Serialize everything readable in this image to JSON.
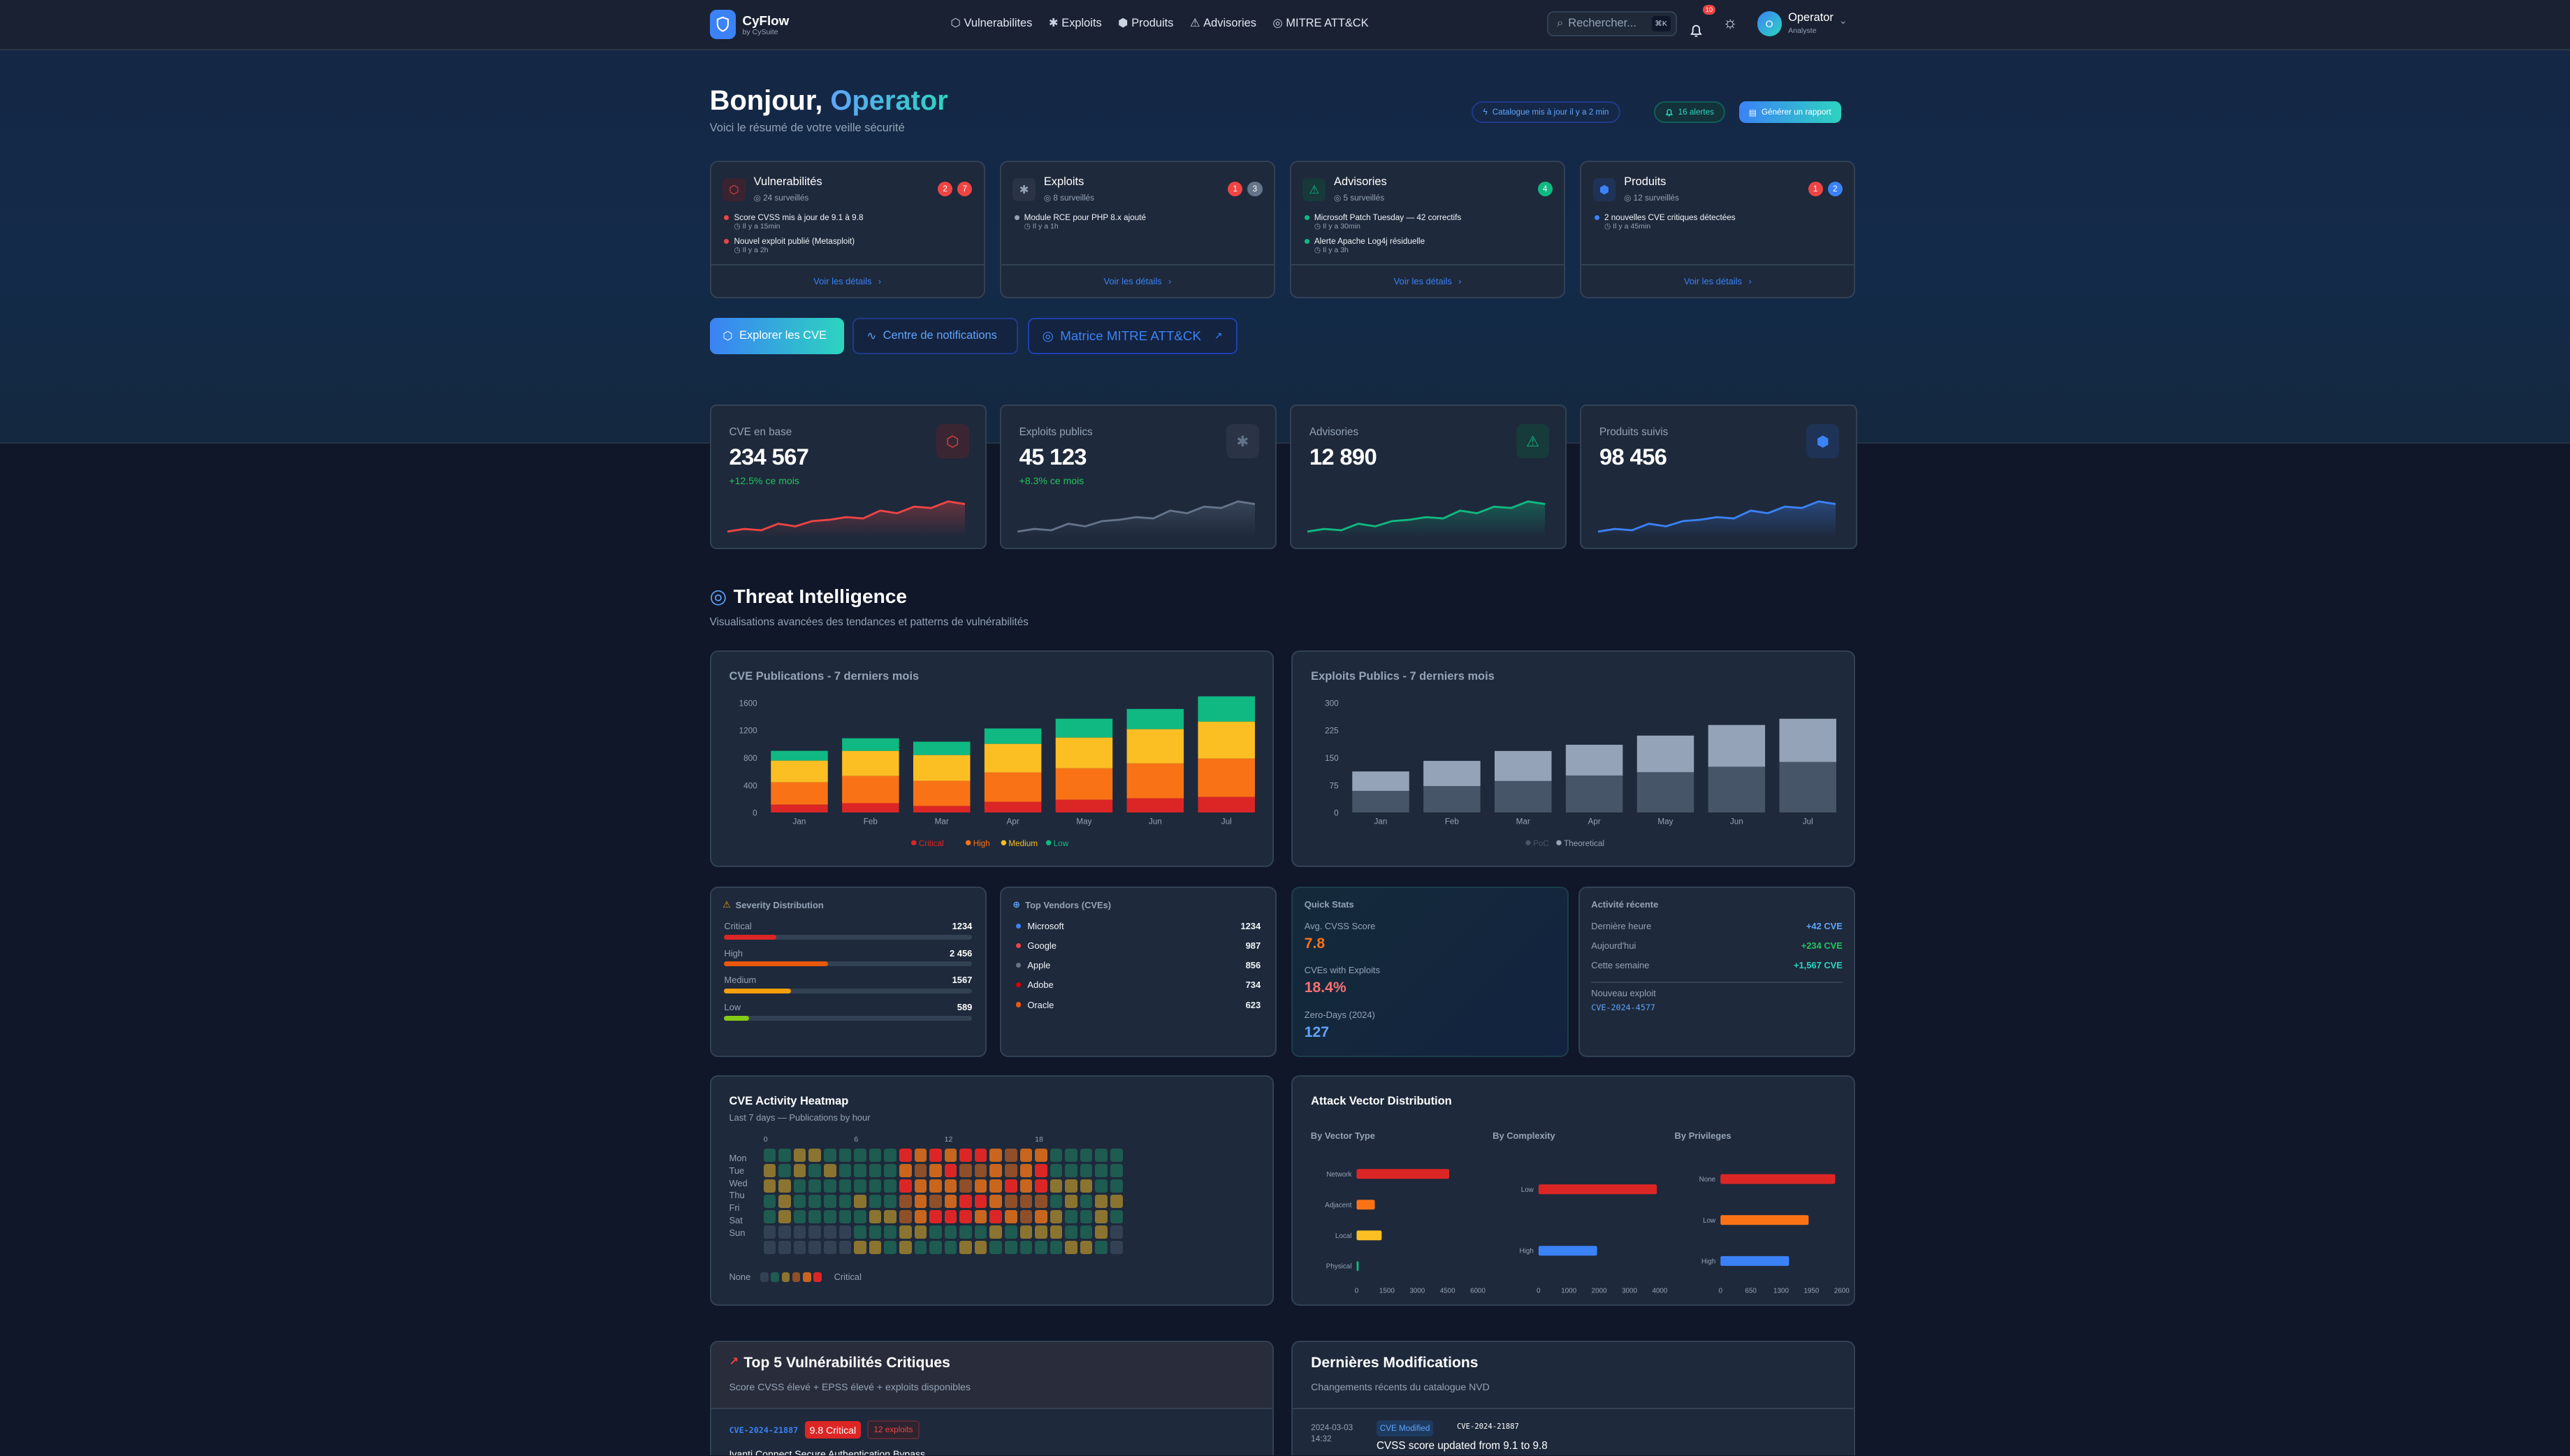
{
  "app": {
    "name": "CyFlow",
    "sub": "by CySuite"
  },
  "nav": [
    {
      "label": "Vulnerabilites",
      "icon": "shield-icon",
      "glyph": "⬡"
    },
    {
      "label": "Exploits",
      "icon": "bug-icon",
      "glyph": "✱"
    },
    {
      "label": "Produits",
      "icon": "package-icon",
      "glyph": "⬢"
    },
    {
      "label": "Advisories",
      "icon": "alert-triangle-icon",
      "glyph": "⚠"
    },
    {
      "label": "MITRE ATT&CK",
      "icon": "target-icon",
      "glyph": "◎"
    }
  ],
  "search": {
    "placeholder": "Rechercher...",
    "shortcut": "⌘K"
  },
  "notifications": {
    "count": "10"
  },
  "user": {
    "initial": "O",
    "name": "Operator",
    "role": "Analyste"
  },
  "hero": {
    "greeting": "Bonjour,",
    "name": "Operator",
    "subtitle": "Voici le résumé de votre veille sécurité",
    "catalog": "Catalogue mis à jour il y a 2 min",
    "alerts": "16 alertes",
    "report": "Générer un rapport"
  },
  "activity_cards": [
    {
      "title": "Vulnerabilités",
      "watched": "24 surveillés",
      "icon": "shield-icon",
      "glyph": "⬡",
      "icon_bg": "#3a2330",
      "icon_color": "#ef4444",
      "dot": "#ef4444",
      "badges": [
        {
          "v": "2",
          "c": "#ef4444"
        },
        {
          "v": "7",
          "c": "#ef4444"
        }
      ],
      "items": [
        {
          "text": "Score CVSS mis à jour de 9.1 à 9.8",
          "time": "Il y a 15min"
        },
        {
          "text": "Nouvel exploit publié (Metasploit)",
          "time": "Il y a 2h"
        }
      ],
      "link": "Voir les détails"
    },
    {
      "title": "Exploits",
      "watched": "8 surveillés",
      "icon": "bug-icon",
      "glyph": "✱",
      "icon_bg": "#2a3446",
      "icon_color": "#94a3b8",
      "dot": "#94a3b8",
      "badges": [
        {
          "v": "1",
          "c": "#ef4444"
        },
        {
          "v": "3",
          "c": "#64748b"
        }
      ],
      "items": [
        {
          "text": "Module RCE pour PHP 8.x ajouté",
          "time": "Il y a 1h"
        }
      ],
      "link": "Voir les détails"
    },
    {
      "title": "Advisories",
      "watched": "5 surveillés",
      "icon": "alert-triangle-icon",
      "glyph": "⚠",
      "icon_bg": "#17393a",
      "icon_color": "#10b981",
      "dot": "#10b981",
      "badges": [
        {
          "v": "4",
          "c": "#10b981"
        }
      ],
      "items": [
        {
          "text": "Microsoft Patch Tuesday — 42 correctifs",
          "time": "Il y a 30min"
        },
        {
          "text": "Alerte Apache Log4j résiduelle",
          "time": "Il y a 3h"
        }
      ],
      "link": "Voir les détails"
    },
    {
      "title": "Produits",
      "watched": "12 surveillés",
      "icon": "package-icon",
      "glyph": "⬢",
      "icon_bg": "#1f3356",
      "icon_color": "#3b82f6",
      "dot": "#3b82f6",
      "badges": [
        {
          "v": "1",
          "c": "#ef4444"
        },
        {
          "v": "2",
          "c": "#3b82f6"
        }
      ],
      "items": [
        {
          "text": "2 nouvelles CVE critiques détectées",
          "time": "Il y a 45min"
        }
      ],
      "link": "Voir les détails"
    }
  ],
  "actions": {
    "explore": "Explorer les CVE",
    "notifications": "Centre de notifications",
    "mitre": "Matrice MITRE ATT&CK"
  },
  "stats": [
    {
      "label": "CVE en base",
      "value": "234 567",
      "change": "+12.5% ce mois",
      "color": "#ef4444",
      "icon_bg": "#3a2632",
      "glyph": "⬡",
      "icon": "shield-icon",
      "spark": [
        2,
        4,
        3,
        8,
        6,
        10,
        11,
        13,
        12,
        18,
        16,
        21,
        20,
        25,
        23
      ]
    },
    {
      "label": "Exploits publics",
      "value": "45 123",
      "change": "+8.3% ce mois",
      "color": "#64748b",
      "icon_bg": "#2a3446",
      "glyph": "✱",
      "icon": "bug-icon",
      "spark": [
        2,
        4,
        3,
        8,
        6,
        10,
        11,
        13,
        12,
        18,
        16,
        21,
        20,
        25,
        23
      ]
    },
    {
      "label": "Advisories",
      "value": "12 890",
      "change": "",
      "color": "#10b981",
      "icon_bg": "#173a3a",
      "glyph": "⚠",
      "icon": "alert-triangle-icon",
      "spark": [
        2,
        4,
        3,
        8,
        6,
        10,
        11,
        13,
        12,
        18,
        16,
        21,
        20,
        25,
        23
      ]
    },
    {
      "label": "Produits suivis",
      "value": "98 456",
      "change": "",
      "color": "#3b82f6",
      "icon_bg": "#1f3356",
      "glyph": "⬢",
      "icon": "package-icon",
      "spark": [
        2,
        4,
        3,
        8,
        6,
        10,
        11,
        13,
        12,
        18,
        16,
        21,
        20,
        25,
        23
      ]
    }
  ],
  "threat": {
    "title": "Threat Intelligence",
    "subtitle": "Visualisations avancées des tendances et patterns de vulnérabilités"
  },
  "chart_data": [
    {
      "type": "bar",
      "stacked": true,
      "title": "CVE Publications - 7 derniers mois",
      "categories": [
        "Jan",
        "Feb",
        "Mar",
        "Apr",
        "May",
        "Jun",
        "Jul"
      ],
      "ylim": [
        0,
        1600
      ],
      "yticks": [
        0,
        400,
        800,
        1200,
        1600
      ],
      "legend": "bottom",
      "series": [
        {
          "name": "Critical",
          "color": "#dc2626",
          "values": [
            115,
            136,
            95,
            156,
            186,
            207,
            227
          ]
        },
        {
          "name": "High",
          "color": "#f97316",
          "values": [
            325,
            396,
            366,
            427,
            458,
            508,
            559
          ]
        },
        {
          "name": "Medium",
          "color": "#fbbf24",
          "values": [
            316,
            366,
            376,
            417,
            448,
            499,
            539
          ]
        },
        {
          "name": "Low",
          "color": "#10b981",
          "values": [
            142,
            183,
            194,
            224,
            274,
            294,
            367
          ]
        }
      ]
    },
    {
      "type": "bar",
      "stacked": true,
      "title": "Exploits Publics - 7 derniers mois",
      "categories": [
        "Jan",
        "Feb",
        "Mar",
        "Apr",
        "May",
        "Jun",
        "Jul"
      ],
      "ylim": [
        0,
        300
      ],
      "yticks": [
        0,
        75,
        150,
        225,
        300
      ],
      "legend": "bottom",
      "series": [
        {
          "name": "PoC",
          "color": "#475569",
          "values": [
            59,
            72,
            86,
            101,
            110,
            125,
            138
          ]
        },
        {
          "name": "Theoretical",
          "color": "#94a3b8",
          "values": [
            53,
            69,
            82,
            84,
            100,
            114,
            118
          ]
        }
      ]
    },
    {
      "type": "bar",
      "orientation": "horizontal",
      "title": "Attack Vector Distribution",
      "panels": [
        {
          "title": "By Vector Type",
          "categories": [
            "Network",
            "Adjacent",
            "Local",
            "Physical"
          ],
          "values": [
            4580,
            900,
            1240,
            100
          ],
          "colors": [
            "#dc2626",
            "#f97316",
            "#fbbf24",
            "#10b981"
          ],
          "xlim": [
            0,
            6000
          ],
          "xticks": [
            0,
            1500,
            3000,
            4500,
            6000
          ]
        },
        {
          "title": "By Complexity",
          "categories": [
            "Low",
            "High"
          ],
          "values": [
            3900,
            1930
          ],
          "colors": [
            "#dc2626",
            "#3b82f6"
          ],
          "xlim": [
            0,
            4000
          ],
          "xticks": [
            0,
            1000,
            2000,
            3000,
            4000
          ]
        },
        {
          "title": "By Privileges",
          "categories": [
            "None",
            "Low",
            "High"
          ],
          "values": [
            2460,
            1890,
            1470
          ],
          "colors": [
            "#dc2626",
            "#f97316",
            "#3b82f6"
          ],
          "xlim": [
            0,
            2600
          ],
          "xticks": [
            0,
            650,
            1300,
            1950,
            2600
          ]
        }
      ]
    },
    {
      "type": "heatmap",
      "title": "CVE Activity Heatmap",
      "subtitle": "Last 7 days — Publications by hour",
      "hour_labels": [
        "0",
        "6",
        "12",
        "18"
      ],
      "days": [
        "Mon",
        "Tue",
        "Wed",
        "Thu",
        "Fri",
        "Sat",
        "Sun"
      ],
      "legend_min": "None",
      "legend_max": "Critical",
      "level_colors": [
        "#334155",
        "#1e5b50",
        "#8a7430",
        "#8f4f28",
        "#c9651d",
        "#dc2626"
      ],
      "levels": [
        [
          1,
          1,
          2,
          2,
          1,
          1,
          1,
          1,
          1,
          5,
          4,
          5,
          4,
          5,
          5,
          4,
          3,
          4,
          4,
          1,
          1,
          1,
          1,
          1
        ],
        [
          2,
          1,
          2,
          1,
          2,
          1,
          1,
          1,
          1,
          4,
          3,
          4,
          5,
          3,
          3,
          4,
          3,
          4,
          5,
          1,
          1,
          1,
          1,
          1
        ],
        [
          2,
          2,
          1,
          1,
          1,
          1,
          1,
          1,
          1,
          5,
          4,
          4,
          4,
          3,
          4,
          4,
          5,
          4,
          5,
          2,
          2,
          2,
          1,
          1
        ],
        [
          1,
          2,
          1,
          1,
          1,
          1,
          2,
          1,
          1,
          3,
          4,
          3,
          4,
          5,
          5,
          4,
          3,
          3,
          3,
          1,
          2,
          1,
          2,
          2
        ],
        [
          1,
          2,
          1,
          1,
          1,
          1,
          1,
          2,
          2,
          3,
          4,
          5,
          5,
          5,
          4,
          5,
          4,
          3,
          4,
          2,
          1,
          1,
          2,
          1
        ],
        [
          0,
          0,
          0,
          0,
          0,
          0,
          1,
          1,
          1,
          2,
          2,
          1,
          1,
          1,
          1,
          2,
          1,
          2,
          2,
          2,
          1,
          1,
          2,
          0
        ],
        [
          0,
          0,
          0,
          0,
          0,
          0,
          2,
          2,
          1,
          2,
          1,
          1,
          1,
          2,
          2,
          1,
          1,
          1,
          1,
          1,
          2,
          2,
          1,
          0
        ]
      ]
    }
  ],
  "severity": {
    "title": "Severity Distribution",
    "items": [
      {
        "label": "Critical",
        "value": "1234",
        "pct": 21,
        "color": "#dc2626"
      },
      {
        "label": "High",
        "value": "2 456",
        "pct": 42,
        "color": "#ea580c"
      },
      {
        "label": "Medium",
        "value": "1567",
        "pct": 27,
        "color": "#f59e0b"
      },
      {
        "label": "Low",
        "value": "589",
        "pct": 10,
        "color": "#84cc16"
      }
    ]
  },
  "vendors": {
    "title": "Top Vendors (CVEs)",
    "items": [
      {
        "name": "Microsoft",
        "value": "1234",
        "color": "#3b82f6"
      },
      {
        "name": "Google",
        "value": "987",
        "color": "#ef4444"
      },
      {
        "name": "Apple",
        "value": "856",
        "color": "#6b7280"
      },
      {
        "name": "Adobe",
        "value": "734",
        "color": "#dc0000"
      },
      {
        "name": "Oracle",
        "value": "623",
        "color": "#ea580c"
      }
    ]
  },
  "quick_stats": {
    "title": "Quick Stats",
    "items": [
      {
        "label": "Avg. CVSS Score",
        "value": "7.8",
        "color": "#f97316"
      },
      {
        "label": "CVEs with Exploits",
        "value": "18.4%",
        "color": "#f87171"
      },
      {
        "label": "Zero-Days (2024)",
        "value": "127",
        "color": "#60a5fa"
      }
    ]
  },
  "recent": {
    "title": "Activité récente",
    "items": [
      {
        "label": "Dernière heure",
        "value": "+42 CVE",
        "color": "#60a5fa"
      },
      {
        "label": "Aujourd'hui",
        "value": "+234 CVE",
        "color": "#22c55e"
      },
      {
        "label": "Cette semaine",
        "value": "+1,567 CVE",
        "color": "#2dd4bf"
      }
    ],
    "new_label": "Nouveau exploit",
    "new_cve": "CVE-2024-4577"
  },
  "top5": {
    "title": "Top 5 Vulnérabilités Critiques",
    "subtitle": "Score CVSS élevé + EPSS élevé + exploits disponibles",
    "rows": [
      {
        "cve": "CVE-2024-21887",
        "score": "9.8 Critical",
        "exploits": "12 exploits",
        "name": "Ivanti Connect Secure Authentication Bypass"
      }
    ]
  },
  "modifications": {
    "title": "Dernières Modifications",
    "subtitle": "Changements récents du catalogue NVD",
    "rows": [
      {
        "date": "2024-03-03",
        "time": "14:32",
        "type": "CVE Modified",
        "cve": "CVE-2024-21887",
        "text": "CVSS score updated from 9.1 to 9.8"
      }
    ]
  }
}
